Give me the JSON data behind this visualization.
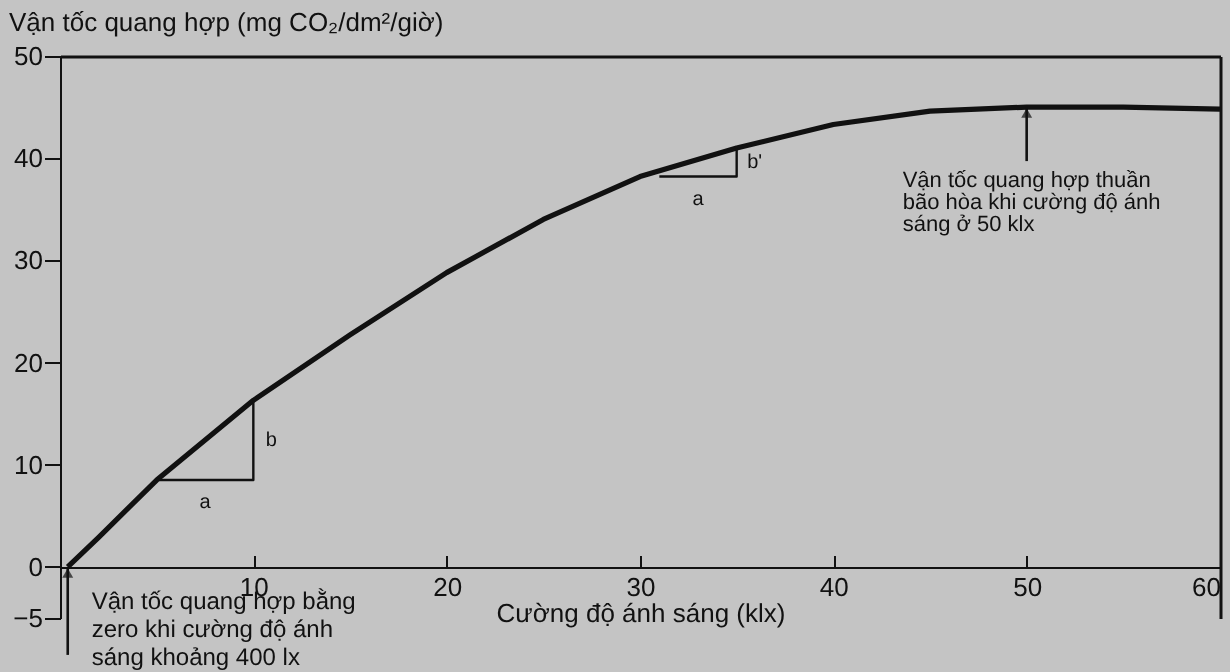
{
  "chart_data": {
    "type": "line",
    "ylabel": "Vận tốc quang hợp (mg CO₂/dm²/giờ)",
    "xlabel": "Cường độ ánh sáng (klx)",
    "x": [
      0.4,
      2,
      5,
      10,
      15,
      20,
      25,
      30,
      35,
      40,
      45,
      50,
      55,
      60
    ],
    "series": [
      {
        "color": "#111111",
        "values": [
          0,
          2.9,
          8.5,
          16.3,
          22.7,
          28.8,
          34,
          38.2,
          41,
          43.3,
          44.6,
          45,
          45,
          44.8
        ]
      },
      {
        "color": "#111111",
        "x": [
          5,
          10,
          10
        ],
        "values": [
          8.5,
          8.5,
          16.3
        ]
      },
      {
        "color": "#111111",
        "x": [
          31,
          35,
          35
        ],
        "values": [
          38.2,
          38.2,
          41
        ]
      }
    ],
    "xlim": [
      0,
      60
    ],
    "xticks": [
      10,
      20,
      30,
      40,
      50,
      60
    ],
    "ylim": [
      -5,
      50
    ],
    "yticks": [
      -5,
      0,
      10,
      20,
      30,
      40,
      50
    ],
    "grid": false,
    "marker": "none",
    "line_style": "solid",
    "annotations": [
      {
        "text": "Vận tốc quang hợp bằng zero khi cường độ ánh sáng khoảng 400 lx",
        "x": 0.4,
        "y": 0
      },
      {
        "text": "Vận tốc quang hợp thuần bão hòa khi cường độ ánh sáng ở 50 klx",
        "x": 50,
        "y": 45
      },
      {
        "text": "a",
        "x": 7.5,
        "y": 8.5
      },
      {
        "text": "b",
        "x": 10,
        "y": 12.4
      },
      {
        "text": "a",
        "x": 33,
        "y": 38.2
      },
      {
        "text": "b'",
        "x": 35,
        "y": 39.6
      }
    ]
  }
}
